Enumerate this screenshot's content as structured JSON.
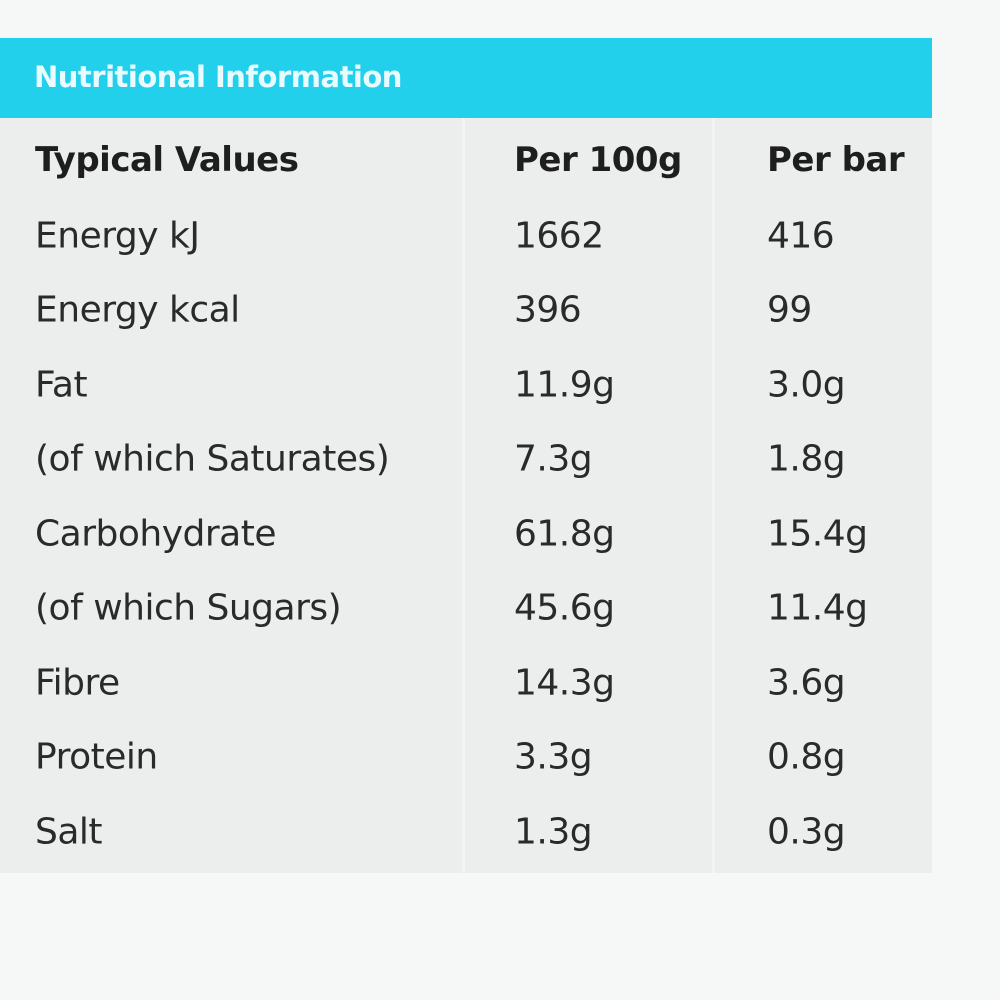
{
  "title": "Nutritional Information",
  "headers": [
    "Typical Values",
    "Per 100g",
    "Per bar"
  ],
  "rows": [
    [
      "Energy kJ",
      "1662",
      "416"
    ],
    [
      "Energy kcal",
      "396",
      "99"
    ],
    [
      "Fat",
      "11.9g",
      "3.0g"
    ],
    [
      "(of which Saturates)",
      "7.3g",
      "1.8g"
    ],
    [
      "Carbohydrate",
      "61.8g",
      "15.4g"
    ],
    [
      "(of which Sugars)",
      "45.6g",
      "11.4g"
    ],
    [
      "Fibre",
      "14.3g",
      "3.6g"
    ],
    [
      "Protein",
      "3.3g",
      "0.8g"
    ],
    [
      "Salt",
      "1.3g",
      "0.3g"
    ]
  ],
  "colors": {
    "header": "#22d0ec",
    "background": "#eceeee"
  }
}
